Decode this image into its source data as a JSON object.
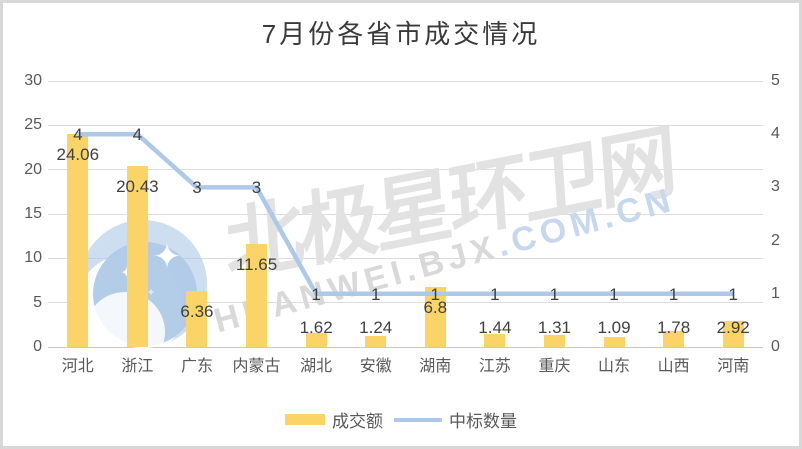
{
  "title": "7月份各省市成交情况",
  "chart_data": {
    "type": "bar",
    "subtype": "column-line-combo",
    "title": "7月份各省市成交情况",
    "categories": [
      "河北",
      "浙江",
      "广东",
      "内蒙古",
      "湖北",
      "安徽",
      "湖南",
      "江苏",
      "重庆",
      "山东",
      "山西",
      "河南"
    ],
    "series": [
      {
        "name": "成交额",
        "type": "column",
        "axis": "left",
        "color": "#fad466",
        "values": [
          24.06,
          20.43,
          6.36,
          11.65,
          1.62,
          1.24,
          6.8,
          1.44,
          1.31,
          1.09,
          1.78,
          2.92
        ]
      },
      {
        "name": "中标数量",
        "type": "line",
        "axis": "right",
        "color": "#aec9e8",
        "values": [
          4,
          4,
          3,
          3,
          1,
          1,
          1,
          1,
          1,
          1,
          1,
          1
        ]
      }
    ],
    "left_axis": {
      "min": 0,
      "max": 30,
      "step": 5,
      "ticks": [
        "30",
        "25",
        "20",
        "15",
        "10",
        "5",
        "0"
      ]
    },
    "right_axis": {
      "min": 0,
      "max": 5,
      "step": 1,
      "ticks": [
        "5",
        "4",
        "3",
        "2",
        "1",
        "0"
      ]
    },
    "grid": true,
    "data_labels": true,
    "legend_position": "bottom-center"
  },
  "watermark": {
    "text_cn": "北极星环卫网",
    "text_en_gray": "HUANWEI.BJX",
    "text_en_blue": ".COM.CN",
    "logo": "bjx-crescent-star-logo"
  },
  "colors": {
    "bar": "#fad466",
    "line": "#aec9e8",
    "grid": "#dcdcdc",
    "axis_line": "#c9c9c9",
    "axis_text": "#595959",
    "data_label_text": "#404040",
    "title_text": "#3a3a3a",
    "frame_border": "#d8d8d8",
    "watermark_gray": "#e2e2e2",
    "watermark_blue": "#c7d8ee",
    "logo_blue": "#afc9e7"
  }
}
